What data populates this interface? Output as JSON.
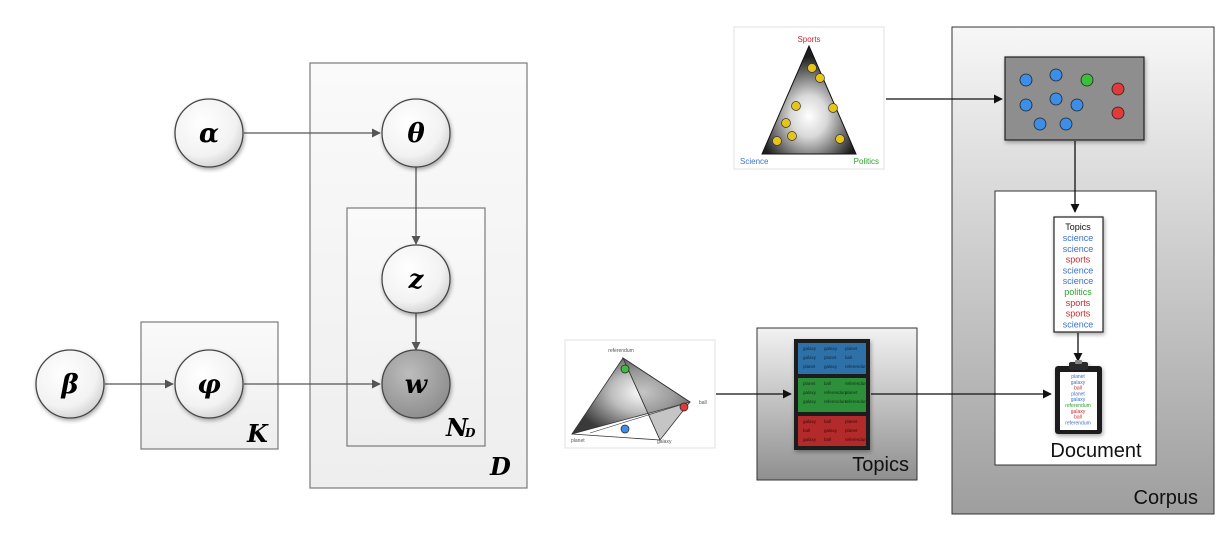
{
  "graphical_model": {
    "nodes": {
      "alpha": "α",
      "theta": "θ",
      "z": "z",
      "w": "w",
      "beta": "β",
      "phi": "φ"
    },
    "plates": {
      "D": "D",
      "N_main": "N",
      "N_sub": "D",
      "K": "K"
    }
  },
  "sports_triangle": {
    "top_label": "Sports",
    "left_label": "Science",
    "right_label": "Politics"
  },
  "colors": {
    "science": "#3a73c8",
    "sports": "#c8282d",
    "politics": "#2e9e2e"
  },
  "document_topics": {
    "title": "Topics",
    "items": [
      {
        "text": "science",
        "type": "science"
      },
      {
        "text": "science",
        "type": "science"
      },
      {
        "text": "sports",
        "type": "sports"
      },
      {
        "text": "science",
        "type": "science"
      },
      {
        "text": "science",
        "type": "science"
      },
      {
        "text": "politics",
        "type": "politics"
      },
      {
        "text": "sports",
        "type": "sports"
      },
      {
        "text": "sports",
        "type": "sports"
      },
      {
        "text": "science",
        "type": "science"
      }
    ]
  },
  "clipboard_words": [
    {
      "text": "planet",
      "type": "science"
    },
    {
      "text": "galaxy",
      "type": "science"
    },
    {
      "text": "ball",
      "type": "sports"
    },
    {
      "text": "planet",
      "type": "science"
    },
    {
      "text": "galaxy",
      "type": "science"
    },
    {
      "text": "referendum",
      "type": "politics"
    },
    {
      "text": "galaxy",
      "type": "sports"
    },
    {
      "text": "ball",
      "type": "sports"
    },
    {
      "text": "referendum",
      "type": "science"
    }
  ],
  "word_triangle": {
    "top_label": "referendum",
    "right_label": "ball",
    "bottom_left_label": "planet",
    "bottom_right_label": "galaxy"
  },
  "topics_panel": {
    "label": "Topics",
    "blue_words": [
      "galaxy",
      "galaxy",
      "planet",
      "galaxy",
      "planet",
      "ball",
      "planet",
      "galaxy",
      "referendum"
    ],
    "green_words": [
      "planet",
      "ball",
      "referendum",
      "galaxy",
      "referendum",
      "planet",
      "galaxy",
      "referendum",
      "referendum"
    ],
    "red_words": [
      "galaxy",
      "ball",
      "planet",
      "ball",
      "galaxy",
      "planet",
      "galaxy",
      "ball",
      "referendum"
    ]
  },
  "document_label": "Document",
  "corpus_label": "Corpus"
}
